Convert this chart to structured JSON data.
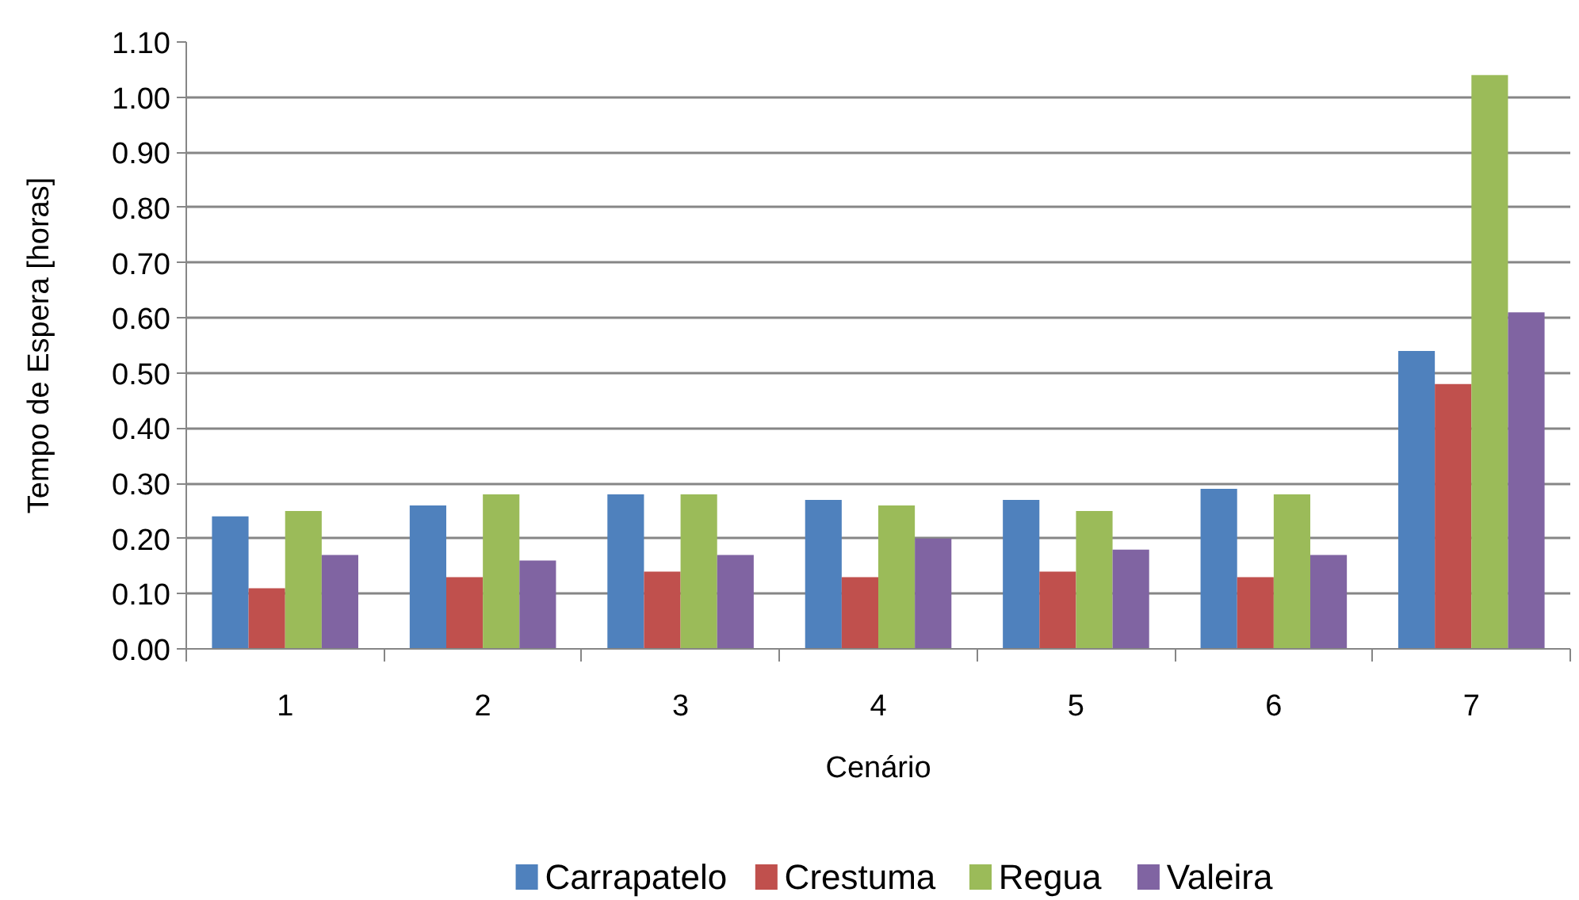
{
  "chart_data": {
    "type": "bar",
    "xlabel": "Cenário",
    "ylabel": "Tempo de Espera [horas]",
    "categories": [
      "1",
      "2",
      "3",
      "4",
      "5",
      "6",
      "7"
    ],
    "series": [
      {
        "name": "Carrapatelo",
        "color": "#4f81bd",
        "values": [
          0.24,
          0.26,
          0.28,
          0.27,
          0.27,
          0.29,
          0.54
        ]
      },
      {
        "name": "Crestuma",
        "color": "#c0504d",
        "values": [
          0.11,
          0.13,
          0.14,
          0.13,
          0.14,
          0.13,
          0.48
        ]
      },
      {
        "name": "Regua",
        "color": "#9bbb59",
        "values": [
          0.25,
          0.28,
          0.28,
          0.26,
          0.25,
          0.28,
          1.04
        ]
      },
      {
        "name": "Valeira",
        "color": "#8064a2",
        "values": [
          0.17,
          0.16,
          0.17,
          0.2,
          0.18,
          0.17,
          0.61
        ]
      }
    ],
    "ylim": [
      0,
      1.1
    ],
    "yticks": [
      {
        "value": 0,
        "label": "0.00"
      },
      {
        "value": 0.1,
        "label": "0.10"
      },
      {
        "value": 0.2,
        "label": "0.20"
      },
      {
        "value": 0.3,
        "label": "0.30"
      },
      {
        "value": 0.4,
        "label": "0.40"
      },
      {
        "value": 0.5,
        "label": "0.50"
      },
      {
        "value": 0.6,
        "label": "0.60"
      },
      {
        "value": 0.7,
        "label": "0.70"
      },
      {
        "value": 0.8,
        "label": "0.80"
      },
      {
        "value": 0.9,
        "label": "0.90"
      },
      {
        "value": 1.0,
        "label": "1.00"
      },
      {
        "value": 1.1,
        "label": "1.10"
      }
    ],
    "grid": "y",
    "legend": "bottom"
  }
}
